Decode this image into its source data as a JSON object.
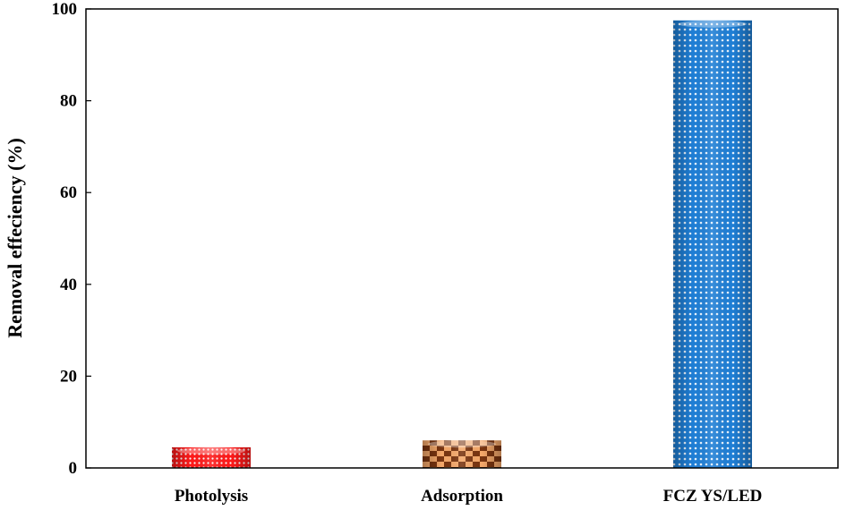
{
  "chart_data": {
    "type": "bar",
    "title": "",
    "xlabel": "",
    "ylabel": "Removal effeciency (%)",
    "categories": [
      "Photolysis",
      "Adsorption",
      "FCZ YS/LED"
    ],
    "values": [
      4.5,
      6,
      97.5
    ],
    "ylim": [
      0,
      100
    ],
    "yticks": [
      "0",
      "20",
      "40",
      "60",
      "80",
      "100"
    ],
    "grid": false,
    "legend": "none",
    "colors": [
      "#ff1a1a",
      "#b05a2a",
      "#1f7fd6"
    ],
    "patterns": [
      "dotted",
      "checkered",
      "dotted"
    ]
  }
}
